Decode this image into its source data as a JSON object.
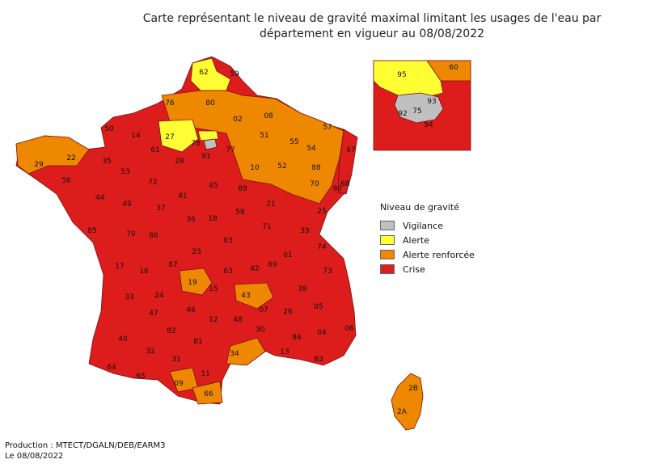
{
  "title": {
    "line1": "Carte représentant le niveau de gravité maximal limitant les usages de l'eau par",
    "line2": "département en vigueur au 08/08/2022"
  },
  "colors": {
    "vigilance": "#c0c0c0",
    "alerte": "#ffff33",
    "alerte_renforcee": "#ee8800",
    "crise": "#dd1c1c",
    "border": "#7a1010"
  },
  "legend": {
    "title": "Niveau de gravité",
    "items": [
      {
        "key": "vigilance",
        "label": "Vigilance"
      },
      {
        "key": "alerte",
        "label": "Alerte"
      },
      {
        "key": "alerte_renforcee",
        "label": "Alerte renforcée"
      },
      {
        "key": "crise",
        "label": "Crise"
      }
    ]
  },
  "departments": [
    {
      "code": "62",
      "level": "alerte"
    },
    {
      "code": "59",
      "level": "crise"
    },
    {
      "code": "76",
      "level": "alerte_renforcee"
    },
    {
      "code": "80",
      "level": "alerte_renforcee"
    },
    {
      "code": "02",
      "level": "alerte_renforcee"
    },
    {
      "code": "08",
      "level": "alerte_renforcee"
    },
    {
      "code": "60",
      "level": "alerte_renforcee"
    },
    {
      "code": "95",
      "level": "alerte"
    },
    {
      "code": "27",
      "level": "alerte"
    },
    {
      "code": "14",
      "level": "crise"
    },
    {
      "code": "50",
      "level": "crise"
    },
    {
      "code": "61",
      "level": "crise"
    },
    {
      "code": "28",
      "level": "crise"
    },
    {
      "code": "78",
      "level": "crise"
    },
    {
      "code": "91",
      "level": "crise"
    },
    {
      "code": "77",
      "level": "crise"
    },
    {
      "code": "93",
      "level": "vigilance"
    },
    {
      "code": "92",
      "level": "vigilance"
    },
    {
      "code": "75",
      "level": "vigilance"
    },
    {
      "code": "94",
      "level": "crise"
    },
    {
      "code": "51",
      "level": "alerte_renforcee"
    },
    {
      "code": "55",
      "level": "alerte_renforcee"
    },
    {
      "code": "57",
      "level": "alerte_renforcee"
    },
    {
      "code": "54",
      "level": "alerte_renforcee"
    },
    {
      "code": "67",
      "level": "crise"
    },
    {
      "code": "88",
      "level": "alerte_renforcee"
    },
    {
      "code": "68",
      "level": "crise"
    },
    {
      "code": "10",
      "level": "alerte_renforcee"
    },
    {
      "code": "52",
      "level": "alerte_renforcee"
    },
    {
      "code": "70",
      "level": "alerte_renforcee"
    },
    {
      "code": "90",
      "level": "alerte_renforcee"
    },
    {
      "code": "29",
      "level": "alerte_renforcee"
    },
    {
      "code": "22",
      "level": "alerte_renforcee"
    },
    {
      "code": "56",
      "level": "crise"
    },
    {
      "code": "35",
      "level": "crise"
    },
    {
      "code": "53",
      "level": "crise"
    },
    {
      "code": "72",
      "level": "crise"
    },
    {
      "code": "44",
      "level": "crise"
    },
    {
      "code": "49",
      "level": "crise"
    },
    {
      "code": "37",
      "level": "crise"
    },
    {
      "code": "41",
      "level": "crise"
    },
    {
      "code": "45",
      "level": "crise"
    },
    {
      "code": "89",
      "level": "crise"
    },
    {
      "code": "21",
      "level": "crise"
    },
    {
      "code": "25",
      "level": "crise"
    },
    {
      "code": "85",
      "level": "crise"
    },
    {
      "code": "79",
      "level": "crise"
    },
    {
      "code": "86",
      "level": "crise"
    },
    {
      "code": "36",
      "level": "crise"
    },
    {
      "code": "18",
      "level": "crise"
    },
    {
      "code": "58",
      "level": "crise"
    },
    {
      "code": "71",
      "level": "crise"
    },
    {
      "code": "39",
      "level": "crise"
    },
    {
      "code": "17",
      "level": "crise"
    },
    {
      "code": "16",
      "level": "crise"
    },
    {
      "code": "87",
      "level": "crise"
    },
    {
      "code": "23",
      "level": "crise"
    },
    {
      "code": "03",
      "level": "crise"
    },
    {
      "code": "63",
      "level": "crise"
    },
    {
      "code": "01",
      "level": "crise"
    },
    {
      "code": "69",
      "level": "crise"
    },
    {
      "code": "74",
      "level": "crise"
    },
    {
      "code": "73",
      "level": "crise"
    },
    {
      "code": "42",
      "level": "crise"
    },
    {
      "code": "19",
      "level": "alerte_renforcee"
    },
    {
      "code": "15",
      "level": "crise"
    },
    {
      "code": "43",
      "level": "alerte_renforcee"
    },
    {
      "code": "38",
      "level": "crise"
    },
    {
      "code": "24",
      "level": "crise"
    },
    {
      "code": "33",
      "level": "crise"
    },
    {
      "code": "46",
      "level": "crise"
    },
    {
      "code": "12",
      "level": "crise"
    },
    {
      "code": "48",
      "level": "crise"
    },
    {
      "code": "07",
      "level": "crise"
    },
    {
      "code": "26",
      "level": "crise"
    },
    {
      "code": "05",
      "level": "crise"
    },
    {
      "code": "47",
      "level": "crise"
    },
    {
      "code": "82",
      "level": "crise"
    },
    {
      "code": "81",
      "level": "crise"
    },
    {
      "code": "30",
      "level": "crise"
    },
    {
      "code": "84",
      "level": "crise"
    },
    {
      "code": "04",
      "level": "crise"
    },
    {
      "code": "06",
      "level": "crise"
    },
    {
      "code": "40",
      "level": "crise"
    },
    {
      "code": "32",
      "level": "crise"
    },
    {
      "code": "31",
      "level": "crise"
    },
    {
      "code": "34",
      "level": "alerte_renforcee"
    },
    {
      "code": "13",
      "level": "crise"
    },
    {
      "code": "83",
      "level": "crise"
    },
    {
      "code": "64",
      "level": "crise"
    },
    {
      "code": "65",
      "level": "crise"
    },
    {
      "code": "09",
      "level": "alerte_renforcee"
    },
    {
      "code": "11",
      "level": "crise"
    },
    {
      "code": "66",
      "level": "alerte_renforcee"
    },
    {
      "code": "2B",
      "level": "alerte_renforcee"
    },
    {
      "code": "2A",
      "level": "alerte_renforcee"
    }
  ],
  "footer": {
    "production": "Production : MTECT/DGALN/DEB/EARM3",
    "date": "Le 08/08/2022"
  }
}
